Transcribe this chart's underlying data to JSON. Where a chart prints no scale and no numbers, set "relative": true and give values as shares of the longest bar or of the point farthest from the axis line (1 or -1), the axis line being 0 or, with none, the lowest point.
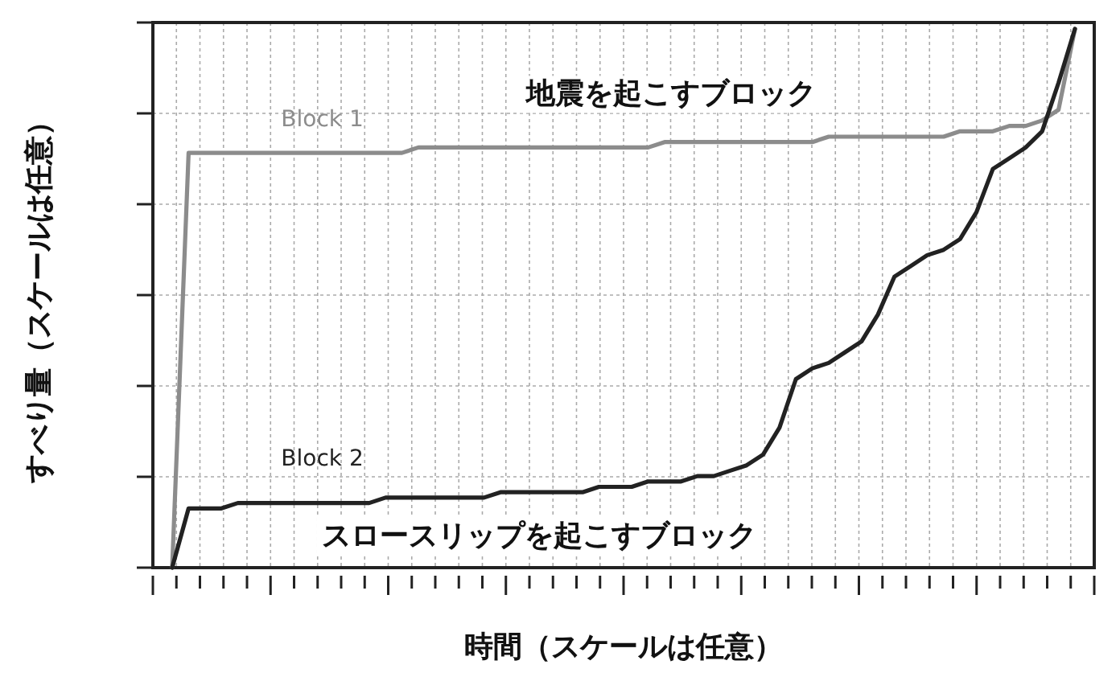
{
  "chart_data": {
    "type": "line",
    "relative": true,
    "xlabel": "時間（スケールは任意）",
    "ylabel": "すべり量（スケールは任意）",
    "categories": [
      null,
      null,
      null,
      null,
      null,
      null,
      null,
      null,
      null,
      null,
      null,
      null,
      null,
      null,
      null,
      null,
      null,
      null,
      null,
      null,
      null,
      null,
      null,
      null,
      null,
      null,
      null,
      null,
      null,
      null,
      null,
      null,
      null,
      null,
      null,
      null,
      null,
      null,
      null,
      null,
      null,
      null,
      null,
      null,
      null,
      null,
      null,
      null,
      null,
      null,
      null,
      null,
      null,
      null,
      null,
      null
    ],
    "series": [
      {
        "name": "Block 1",
        "color": "#8c8c8c",
        "values": [
          0,
          0.77,
          0.77,
          0.77,
          0.77,
          0.77,
          0.77,
          0.77,
          0.77,
          0.77,
          0.77,
          0.77,
          0.77,
          0.77,
          0.77,
          0.78,
          0.78,
          0.78,
          0.78,
          0.78,
          0.78,
          0.78,
          0.78,
          0.78,
          0.78,
          0.78,
          0.78,
          0.78,
          0.78,
          0.78,
          0.79,
          0.79,
          0.79,
          0.79,
          0.79,
          0.79,
          0.79,
          0.79,
          0.79,
          0.79,
          0.8,
          0.8,
          0.8,
          0.8,
          0.8,
          0.8,
          0.8,
          0.8,
          0.81,
          0.81,
          0.81,
          0.82,
          0.82,
          0.83,
          0.85,
          1
        ]
      },
      {
        "name": "Block 2",
        "color": "#222222",
        "values": [
          0,
          0.11,
          0.11,
          0.11,
          0.12,
          0.12,
          0.12,
          0.12,
          0.12,
          0.12,
          0.12,
          0.12,
          0.12,
          0.13,
          0.13,
          0.13,
          0.13,
          0.13,
          0.13,
          0.13,
          0.14,
          0.14,
          0.14,
          0.14,
          0.14,
          0.14,
          0.15,
          0.15,
          0.15,
          0.16,
          0.16,
          0.16,
          0.17,
          0.17,
          0.18,
          0.19,
          0.21,
          0.26,
          0.35,
          0.37,
          0.38,
          0.4,
          0.42,
          0.47,
          0.54,
          0.56,
          0.58,
          0.59,
          0.61,
          0.66,
          0.74,
          0.76,
          0.78,
          0.81,
          0.9,
          1
        ]
      }
    ],
    "annotations": [
      "地震を起こすブロック",
      "スロースリップを起こすブロック"
    ],
    "grid": true,
    "marker": "none",
    "line_style": "solid"
  }
}
